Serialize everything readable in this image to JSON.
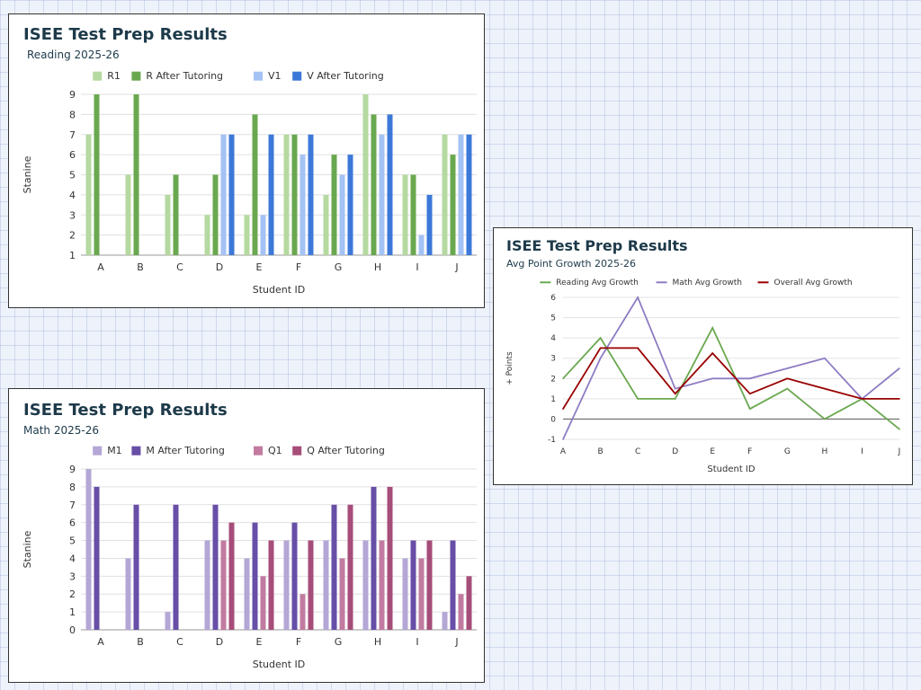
{
  "chart_data": [
    {
      "id": "reading",
      "type": "bar",
      "title": "ISEE Test Prep Results",
      "subtitle": "Reading 2025-26",
      "xlabel": "Student ID",
      "ylabel": "Stanine",
      "ylim": [
        1,
        9
      ],
      "yticks": [
        "1",
        "2",
        "3",
        "4",
        "5",
        "6",
        "7",
        "8",
        "9"
      ],
      "categories": [
        "A",
        "B",
        "C",
        "D",
        "E",
        "F",
        "G",
        "H",
        "I",
        "J"
      ],
      "legend_position": "top",
      "series": [
        {
          "name": "R1",
          "color": "#b5d9a0",
          "values": [
            7,
            5,
            4,
            3,
            3,
            7,
            4,
            9,
            5,
            7
          ]
        },
        {
          "name": "R After Tutoring",
          "color": "#6aa84f",
          "values": [
            9,
            9,
            5,
            5,
            8,
            7,
            6,
            8,
            5,
            6
          ]
        },
        {
          "name": "V1",
          "color": "#a4c2f4",
          "values": [
            null,
            null,
            null,
            7,
            3,
            6,
            5,
            7,
            2,
            7
          ]
        },
        {
          "name": "V After Tutoring",
          "color": "#3c78d8",
          "values": [
            null,
            null,
            null,
            7,
            7,
            7,
            6,
            8,
            4,
            7
          ]
        }
      ]
    },
    {
      "id": "math",
      "type": "bar",
      "title": "ISEE Test Prep Results",
      "subtitle": "Math 2025-26",
      "xlabel": "Student ID",
      "ylabel": "Stanine",
      "ylim": [
        0,
        9
      ],
      "yticks": [
        "0",
        "1",
        "2",
        "3",
        "4",
        "5",
        "6",
        "7",
        "8",
        "9"
      ],
      "categories": [
        "A",
        "B",
        "C",
        "D",
        "E",
        "F",
        "G",
        "H",
        "I",
        "J"
      ],
      "legend_position": "top",
      "series": [
        {
          "name": "M1",
          "color": "#b4a7d6",
          "values": [
            9,
            4,
            1,
            5,
            4,
            5,
            5,
            5,
            4,
            1
          ]
        },
        {
          "name": "M After Tutoring",
          "color": "#674ea7",
          "values": [
            8,
            7,
            7,
            7,
            6,
            6,
            7,
            8,
            5,
            5
          ]
        },
        {
          "name": "Q1",
          "color": "#c27ba0",
          "values": [
            null,
            null,
            null,
            5,
            3,
            2,
            4,
            5,
            4,
            2
          ]
        },
        {
          "name": "Q After Tutoring",
          "color": "#a64d79",
          "values": [
            null,
            null,
            null,
            6,
            5,
            5,
            7,
            8,
            5,
            3
          ]
        }
      ]
    },
    {
      "id": "growth",
      "type": "line",
      "title": "ISEE Test Prep Results",
      "subtitle": "Avg Point Growth 2025-26",
      "xlabel": "Student ID",
      "ylabel": "+ Points",
      "ylim": [
        -1,
        6
      ],
      "yticks": [
        "-1",
        "0",
        "1",
        "2",
        "3",
        "4",
        "5",
        "6"
      ],
      "categories": [
        "A",
        "B",
        "C",
        "D",
        "E",
        "F",
        "G",
        "H",
        "I",
        "J"
      ],
      "legend_position": "top",
      "series": [
        {
          "name": "Reading Avg Growth",
          "color": "#6aa84f",
          "values": [
            2,
            4,
            1,
            1,
            4.5,
            0.5,
            1.5,
            0,
            1,
            -0.5
          ]
        },
        {
          "name": "Math Avg Growth",
          "color": "#8e7cc3",
          "values": [
            -1,
            3,
            6,
            1.5,
            2,
            2,
            2.5,
            3,
            1,
            2.5
          ]
        },
        {
          "name": "Overall Avg Growth",
          "color": "#990000",
          "values": [
            0.5,
            3.5,
            3.5,
            1.25,
            3.25,
            1.25,
            2,
            1.5,
            1,
            1
          ]
        }
      ]
    }
  ]
}
